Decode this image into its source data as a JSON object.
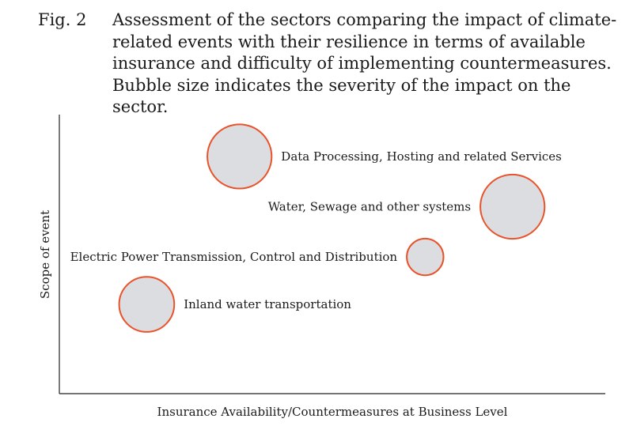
{
  "figure": {
    "number": "Fig. 2",
    "caption": "Assessment of the sectors comparing the impact of climate-related events with their resilience in terms of available insurance and difficulty of implementing countermeasures. Bubble size indicates the severity of the impact on the sector."
  },
  "chart_data": {
    "type": "scatter",
    "title": "",
    "xlabel": "Insurance Availability/Countermeasures at Business Level",
    "ylabel": "Scope of event",
    "xlim": [
      0,
      100
    ],
    "ylim": [
      0,
      100
    ],
    "grid": false,
    "colors": {
      "bubble_fill": "#dcdde0",
      "bubble_stroke": "#e8532b",
      "axis": "#222222"
    },
    "points": [
      {
        "label": "Data Processing, Hosting and related Services",
        "x": 33,
        "y": 85,
        "size": 3.5,
        "label_side": "right"
      },
      {
        "label": "Water, Sewage and other systems",
        "x": 83,
        "y": 67,
        "size": 3.5,
        "label_side": "left"
      },
      {
        "label": "Electric Power Transmission, Control and Distribution",
        "x": 67,
        "y": 49,
        "size": 2,
        "label_side": "left"
      },
      {
        "label": "Inland water transportation",
        "x": 16,
        "y": 32,
        "size": 3,
        "label_side": "right"
      }
    ]
  }
}
